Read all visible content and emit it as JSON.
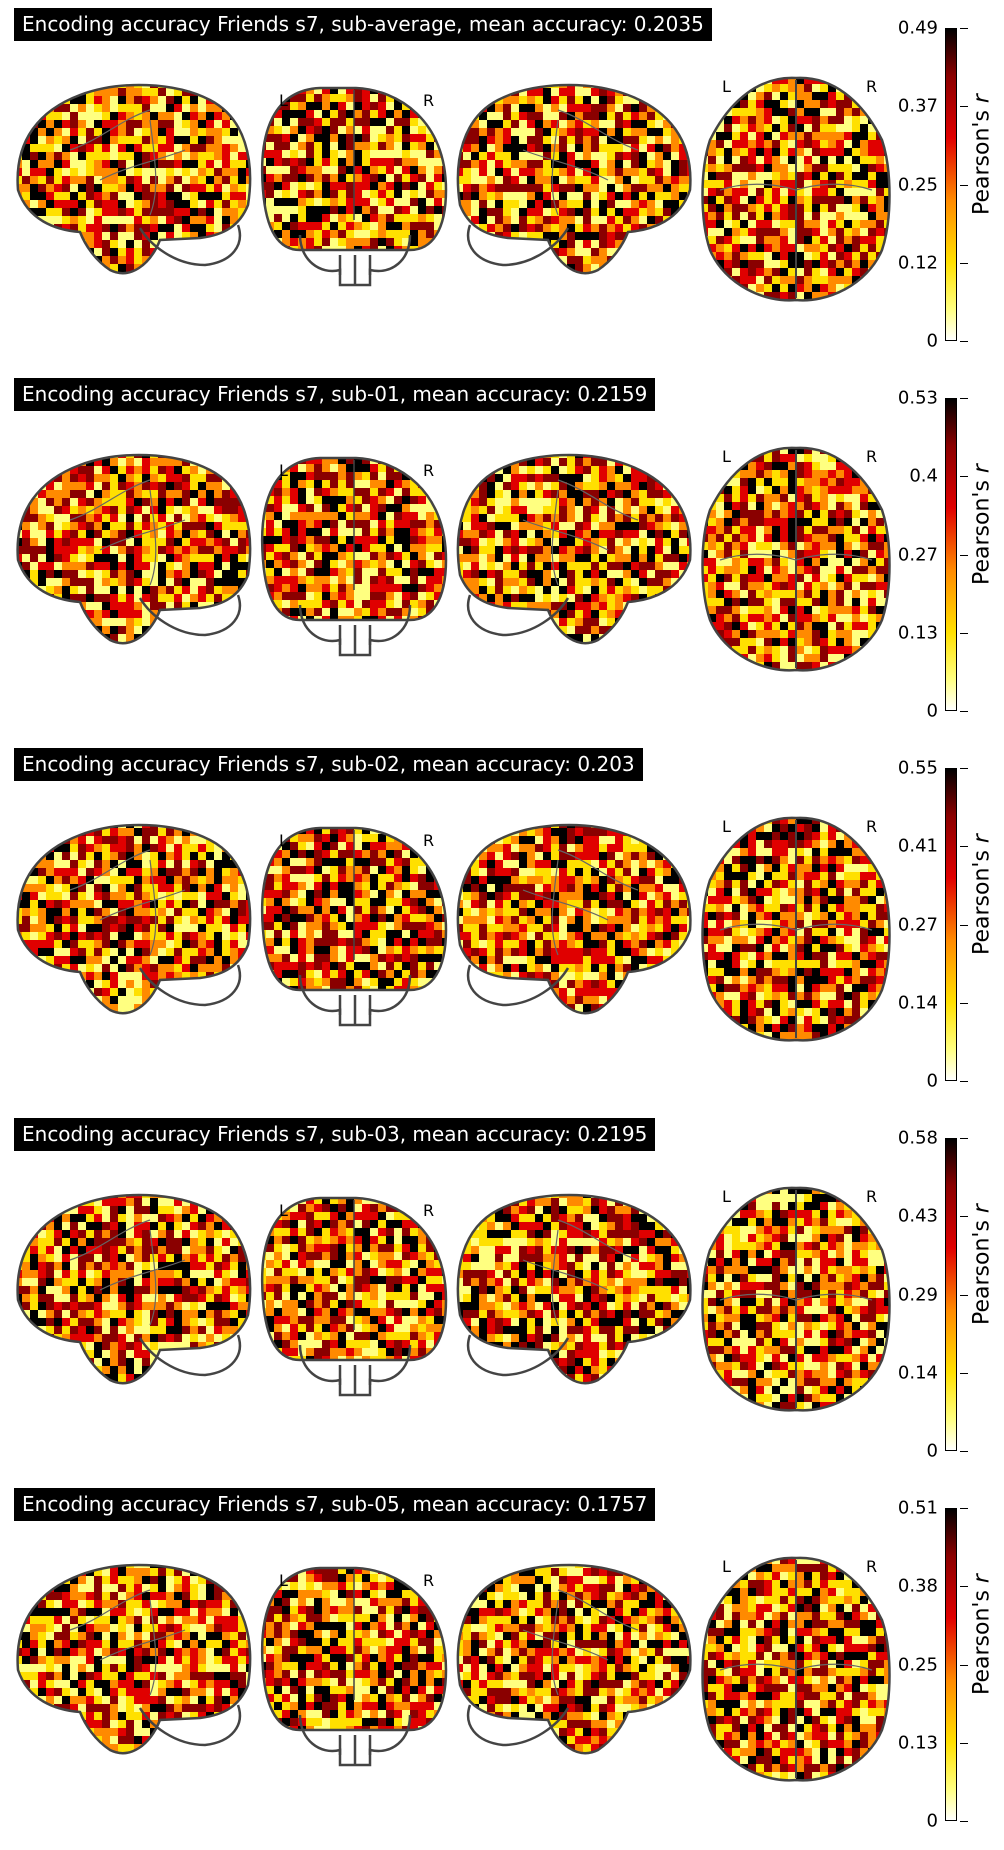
{
  "colormap": {
    "name": "cold_hot",
    "stops": [
      "#ffffff",
      "#ffff80",
      "#ffe000",
      "#ff8a00",
      "#e00000",
      "#8a0000",
      "#000000"
    ]
  },
  "hemisphere_labels": {
    "left": "L",
    "right": "R"
  },
  "colorbar_label": {
    "prefix": "Pearson's ",
    "italic": "r"
  },
  "panels": [
    {
      "title": "Encoding accuracy Friends s7, sub-average, mean accuracy: 0.2035",
      "ticks": [
        "0",
        "0.12",
        "0.25",
        "0.37",
        "0.49"
      ]
    },
    {
      "title": "Encoding accuracy Friends s7, sub-01, mean accuracy: 0.2159",
      "ticks": [
        "0",
        "0.13",
        "0.27",
        "0.4",
        "0.53"
      ]
    },
    {
      "title": "Encoding accuracy Friends s7, sub-02, mean accuracy: 0.203",
      "ticks": [
        "0",
        "0.14",
        "0.27",
        "0.41",
        "0.55"
      ]
    },
    {
      "title": "Encoding accuracy Friends s7, sub-03, mean accuracy: 0.2195",
      "ticks": [
        "0",
        "0.14",
        "0.29",
        "0.43",
        "0.58"
      ]
    },
    {
      "title": "Encoding accuracy Friends s7, sub-05, mean accuracy: 0.1757",
      "ticks": [
        "0",
        "0.13",
        "0.25",
        "0.38",
        "0.51"
      ]
    }
  ]
}
